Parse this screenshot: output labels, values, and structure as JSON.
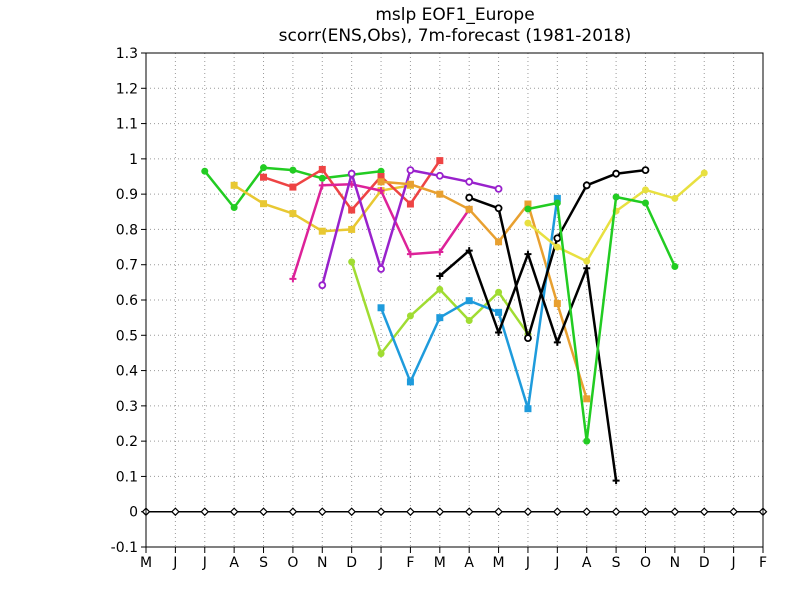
{
  "chart_data": {
    "type": "line",
    "title": "mslp EOF1_Europe",
    "subtitle": "scorr(ENS,Obs), 7m-forecast (1981-2018)",
    "xlabel": "",
    "ylabel": "",
    "x_ticks": [
      "M",
      "J",
      "J",
      "A",
      "S",
      "O",
      "N",
      "D",
      "J",
      "F",
      "M",
      "A",
      "M",
      "J",
      "J",
      "A",
      "S",
      "O",
      "N",
      "D",
      "J",
      "F"
    ],
    "ylim": [
      -0.1,
      1.3
    ],
    "y_ticks": [
      "-0.1",
      "0",
      "0.1",
      "0.2",
      "0.3",
      "0.4",
      "0.5",
      "0.6",
      "0.7",
      "0.8",
      "0.9",
      "1",
      "1.1",
      "1.2",
      "1.3"
    ],
    "grid": true,
    "series": [
      {
        "color": "#22cc22",
        "marker": "dot",
        "points": [
          [
            2,
            0.965
          ],
          [
            3,
            0.862
          ],
          [
            4,
            0.975
          ],
          [
            5,
            0.968
          ],
          [
            6,
            0.945
          ],
          [
            7,
            0.955
          ],
          [
            8,
            0.965
          ]
        ]
      },
      {
        "color": "#e8c832",
        "marker": "square",
        "points": [
          [
            3,
            0.925
          ],
          [
            4,
            0.873
          ],
          [
            5,
            0.845
          ],
          [
            6,
            0.795
          ],
          [
            7,
            0.8
          ],
          [
            8,
            0.91
          ],
          [
            9,
            0.925
          ]
        ]
      },
      {
        "color": "#ee4444",
        "marker": "square",
        "points": [
          [
            4,
            0.948
          ],
          [
            5,
            0.92
          ],
          [
            6,
            0.97
          ],
          [
            7,
            0.855
          ],
          [
            8,
            0.95
          ],
          [
            9,
            0.872
          ],
          [
            10,
            0.995
          ]
        ]
      },
      {
        "color": "#dd2299",
        "marker": "plus",
        "points": [
          [
            5,
            0.66
          ],
          [
            6,
            0.925
          ],
          [
            7,
            0.928
          ],
          [
            8,
            0.91
          ],
          [
            9,
            0.73
          ],
          [
            10,
            0.736
          ],
          [
            11,
            0.857
          ]
        ]
      },
      {
        "color": "#9922cc",
        "marker": "circle",
        "points": [
          [
            6,
            0.642
          ],
          [
            7,
            0.958
          ],
          [
            8,
            0.688
          ],
          [
            9,
            0.968
          ],
          [
            10,
            0.952
          ],
          [
            11,
            0.935
          ],
          [
            12,
            0.915
          ]
        ]
      },
      {
        "color": "#a0dc32",
        "marker": "dot",
        "points": [
          [
            7,
            0.708
          ],
          [
            8,
            0.448
          ],
          [
            9,
            0.555
          ],
          [
            10,
            0.63
          ],
          [
            11,
            0.542
          ],
          [
            12,
            0.622
          ],
          [
            13,
            0.503
          ]
        ]
      },
      {
        "color": "#e8a030",
        "marker": "square",
        "points": [
          [
            8,
            0.935
          ],
          [
            9,
            0.928
          ],
          [
            10,
            0.9
          ],
          [
            11,
            0.857
          ],
          [
            12,
            0.765
          ],
          [
            13,
            0.872
          ],
          [
            14,
            0.59
          ],
          [
            15,
            0.32
          ]
        ]
      },
      {
        "color": "#1e9bdc",
        "marker": "square",
        "points": [
          [
            8,
            0.578
          ],
          [
            9,
            0.368
          ],
          [
            10,
            0.55
          ],
          [
            11,
            0.598
          ],
          [
            12,
            0.565
          ],
          [
            13,
            0.292
          ],
          [
            14,
            0.888
          ]
        ]
      },
      {
        "color": "#000000",
        "marker": "plus",
        "points": [
          [
            10,
            0.668
          ],
          [
            11,
            0.74
          ],
          [
            12,
            0.508
          ],
          [
            13,
            0.73
          ],
          [
            14,
            0.48
          ],
          [
            15,
            0.69
          ],
          [
            16,
            0.088
          ]
        ]
      },
      {
        "color": "#000000",
        "marker": "circle",
        "points": [
          [
            11,
            0.89
          ],
          [
            12,
            0.86
          ],
          [
            13,
            0.492
          ],
          [
            14,
            0.775
          ],
          [
            15,
            0.925
          ],
          [
            16,
            0.958
          ],
          [
            17,
            0.968
          ]
        ]
      },
      {
        "color": "#e8e040",
        "marker": "dot",
        "points": [
          [
            13,
            0.818
          ],
          [
            14,
            0.75
          ],
          [
            15,
            0.71
          ],
          [
            16,
            0.852
          ],
          [
            17,
            0.912
          ],
          [
            18,
            0.888
          ],
          [
            19,
            0.96
          ]
        ]
      },
      {
        "color": "#22cc22",
        "marker": "dot",
        "points": [
          [
            13,
            0.858
          ],
          [
            14,
            0.875
          ],
          [
            15,
            0.2
          ],
          [
            16,
            0.892
          ],
          [
            17,
            0.875
          ],
          [
            18,
            0.695
          ]
        ]
      },
      {
        "color": "#000000",
        "marker": "diamond",
        "points": [
          [
            0,
            0
          ],
          [
            1,
            0
          ],
          [
            2,
            0
          ],
          [
            3,
            0
          ],
          [
            4,
            0
          ],
          [
            5,
            0
          ],
          [
            6,
            0
          ],
          [
            7,
            0
          ],
          [
            8,
            0
          ],
          [
            9,
            0
          ],
          [
            10,
            0
          ],
          [
            11,
            0
          ],
          [
            12,
            0
          ],
          [
            13,
            0
          ],
          [
            14,
            0
          ],
          [
            15,
            0
          ],
          [
            16,
            0
          ],
          [
            17,
            0
          ],
          [
            18,
            0
          ],
          [
            19,
            0
          ],
          [
            20,
            0
          ],
          [
            21,
            0
          ]
        ]
      }
    ]
  }
}
